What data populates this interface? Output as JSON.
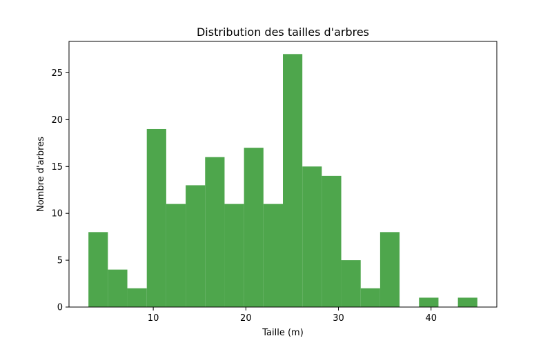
{
  "chart_data": {
    "type": "bar",
    "title": "Distribution des tailles d'arbres",
    "xlabel": "Taille (m)",
    "ylabel": "Nombre d'arbres",
    "bin_edges": [
      3.0,
      5.1,
      7.2,
      9.3,
      11.4,
      13.5,
      15.6,
      17.7,
      19.8,
      21.9,
      24.0,
      26.1,
      28.2,
      30.3,
      32.4,
      34.5,
      36.6,
      38.7,
      40.8,
      42.9,
      45.0
    ],
    "values": [
      8,
      4,
      2,
      19,
      11,
      13,
      16,
      11,
      17,
      11,
      27,
      15,
      14,
      5,
      2,
      8,
      0,
      1,
      0,
      1
    ],
    "xlim": [
      0.9,
      47.1
    ],
    "ylim": [
      0,
      28.35
    ],
    "xticks": [
      10,
      20,
      30,
      40
    ],
    "yticks": [
      0,
      5,
      10,
      15,
      20,
      25
    ],
    "bar_color": "#4ea64c",
    "grid": false,
    "legend": "none"
  }
}
